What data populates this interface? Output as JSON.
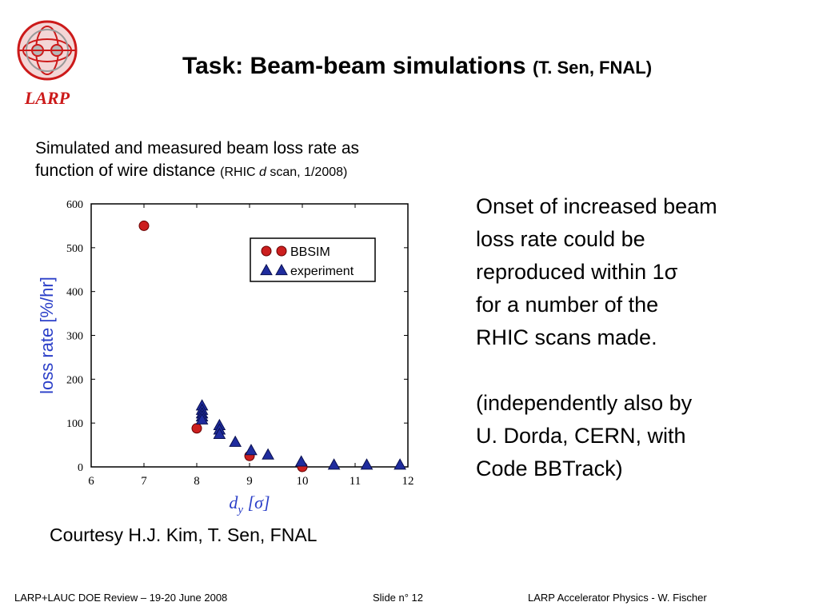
{
  "logo": {
    "text": "LARP"
  },
  "title": {
    "main": "Task: Beam-beam simulations",
    "sub": "(T. Sen, FNAL)"
  },
  "caption": {
    "line1": "Simulated and measured beam loss rate as",
    "line2": "function of wire distance",
    "note_pre": "(RHIC ",
    "note_var": "d",
    "note_post": " scan, 1/2008)"
  },
  "right_text": {
    "p1": [
      "Onset of increased beam",
      "loss rate could be",
      "reproduced within 1σ",
      "for a number of the",
      "RHIC scans made."
    ],
    "p2": [
      "(independently also by",
      "U. Dorda, CERN, with",
      "Code BBTrack)"
    ]
  },
  "courtesy": "Courtesy H.J. Kim, T. Sen, FNAL",
  "footer": {
    "left": "LARP+LAUC DOE Review – 19-20 June 2008",
    "center": "Slide n° 12",
    "right": "LARP Accelerator Physics -  W. Fischer"
  },
  "colors": {
    "simulation": "#cc1f1f",
    "experiment": "#1f2c9e",
    "axis_label": "#2b3fc8",
    "logo": "#cc1a1a"
  },
  "chart_data": {
    "type": "scatter",
    "xlabel_var": "d",
    "xlabel_sub": "y",
    "xlabel_unit": "[σ]",
    "ylabel": "loss rate [%/hr]",
    "xlim": [
      6,
      12
    ],
    "ylim": [
      0,
      600
    ],
    "xticks": [
      "6",
      "7",
      "8",
      "9",
      "10",
      "11",
      "12"
    ],
    "yticks": [
      "0",
      "100",
      "200",
      "300",
      "400",
      "500",
      "600"
    ],
    "legend_position": "top-right",
    "series": [
      {
        "name": "BBSIM",
        "marker": "circle",
        "points": [
          [
            7.0,
            550
          ],
          [
            8.0,
            88
          ],
          [
            9.0,
            25
          ],
          [
            10.0,
            0
          ]
        ]
      },
      {
        "name": "experiment",
        "marker": "triangle",
        "points": [
          [
            8.1,
            140
          ],
          [
            8.1,
            130
          ],
          [
            8.1,
            122
          ],
          [
            8.1,
            115
          ],
          [
            8.1,
            108
          ],
          [
            8.43,
            95
          ],
          [
            8.43,
            85
          ],
          [
            8.43,
            75
          ],
          [
            8.73,
            57
          ],
          [
            9.03,
            38
          ],
          [
            9.35,
            28
          ],
          [
            9.98,
            12
          ],
          [
            10.6,
            5
          ],
          [
            11.22,
            5
          ],
          [
            11.85,
            5
          ]
        ]
      }
    ]
  }
}
